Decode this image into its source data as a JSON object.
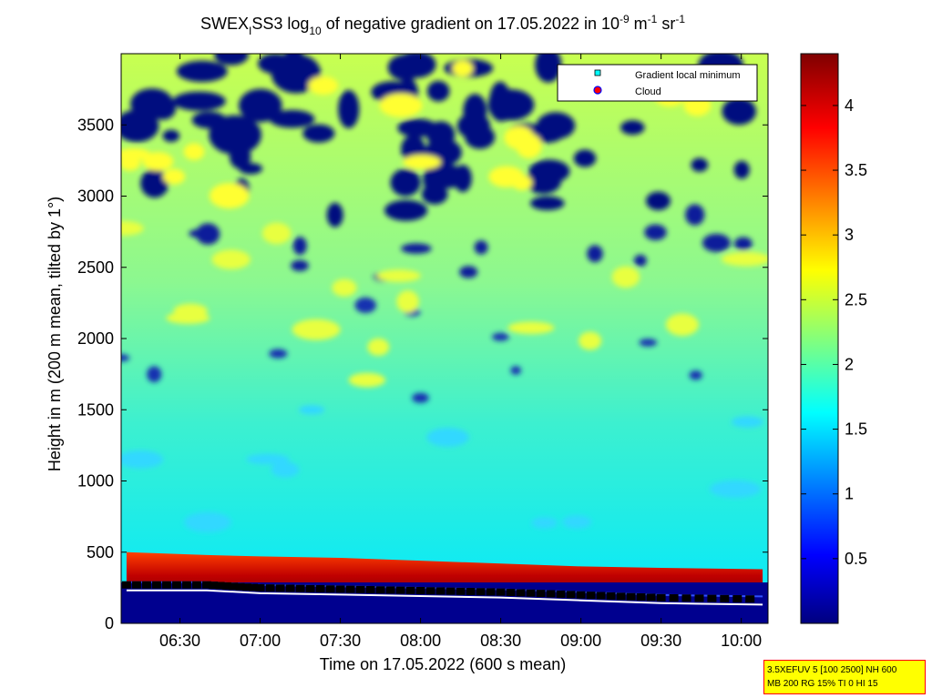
{
  "chart_data": {
    "type": "heatmap",
    "title": {
      "pre": "SWEX",
      "sub_i": "I",
      "mid": "SS3 log",
      "sub_10": "10",
      "post": " of negative gradient on 17.05.2022 in 10",
      "sup_neg9": "-9",
      "unit_m": " m",
      "sup_neg1a": "-1",
      "unit_sr": " sr",
      "sup_neg1b": "-1"
    },
    "xlabel": "Time on 17.05.2022 (600 s mean)",
    "ylabel": "Height in m (200 m mean, tilted by 1°)",
    "x_ticks": [
      "06:30",
      "07:00",
      "07:30",
      "08:00",
      "08:30",
      "09:00",
      "09:30",
      "10:00"
    ],
    "y_ticks": [
      "0",
      "500",
      "1000",
      "1500",
      "2000",
      "2500",
      "3000",
      "3500"
    ],
    "colorbar_ticks": [
      "0.5",
      "1",
      "1.5",
      "2",
      "2.5",
      "3",
      "3.5",
      "4"
    ],
    "colorbar_range": [
      0,
      4.4
    ],
    "ylim": [
      0,
      4000
    ],
    "xlim": [
      "06:08",
      "10:10"
    ],
    "colormap": [
      "#00007f",
      "#0000ff",
      "#00ffff",
      "#ffff00",
      "#ff0000",
      "#7f0000"
    ],
    "legend": [
      {
        "label": "Gradient local minimum",
        "marker": "square",
        "color": "#00ffff"
      },
      {
        "label": "Cloud",
        "marker": "circle",
        "color": "#ff0000"
      }
    ],
    "legend_position": "top-right",
    "gradient_minimum_height_m": [
      {
        "t": "06:10",
        "h": 270
      },
      {
        "t": "06:40",
        "h": 270
      },
      {
        "t": "07:00",
        "h": 250
      },
      {
        "t": "07:30",
        "h": 240
      },
      {
        "t": "08:00",
        "h": 230
      },
      {
        "t": "08:30",
        "h": 220
      },
      {
        "t": "09:00",
        "h": 200
      },
      {
        "t": "09:30",
        "h": 180
      },
      {
        "t": "10:08",
        "h": 170
      }
    ],
    "mixing_layer_top_m": [
      {
        "t": "06:10",
        "h": 500
      },
      {
        "t": "06:40",
        "h": 480
      },
      {
        "t": "07:00",
        "h": 470
      },
      {
        "t": "07:30",
        "h": 460
      },
      {
        "t": "08:00",
        "h": 440
      },
      {
        "t": "08:30",
        "h": 420
      },
      {
        "t": "09:00",
        "h": 400
      },
      {
        "t": "09:30",
        "h": 390
      },
      {
        "t": "10:08",
        "h": 380
      }
    ]
  },
  "info_box": {
    "line1": "3.5XEFUV 5 [100 2500] NH 600",
    "line2": "MB 200 RG 15% TI 0 HI 15"
  }
}
